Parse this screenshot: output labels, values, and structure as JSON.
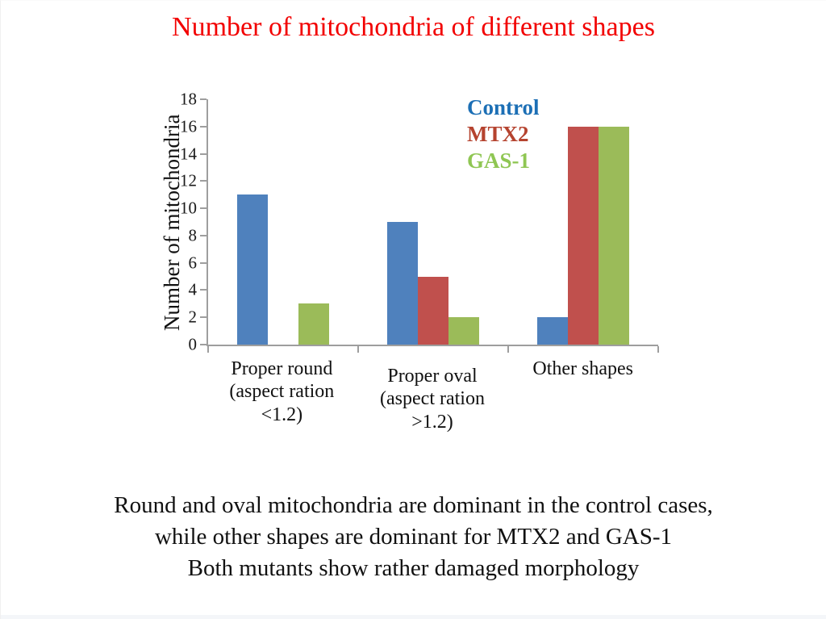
{
  "title": {
    "text": "Number of mitochondria of different shapes",
    "color": "#f20000"
  },
  "chart_data": {
    "type": "bar",
    "title": "Number of mitochondria of different shapes",
    "xlabel": "",
    "ylabel": "Number of mitochondria",
    "ylim": [
      0,
      18
    ],
    "ytick_step": 2,
    "grid": false,
    "legend_position": "top-right-inside",
    "axis_color": "#9e9e9e",
    "tick_label_color": "#1a1a1a",
    "categories": [
      "Proper round\n(aspect ration\n<1.2)",
      "Proper oval\n(aspect ration\n>1.2)",
      "Other shapes"
    ],
    "series": [
      {
        "name": "Control",
        "color": "#4F81BD",
        "label_color": "#1C6FB5",
        "values": [
          11,
          9,
          2
        ]
      },
      {
        "name": "MTX2",
        "color": "#C0504D",
        "label_color": "#B5432F",
        "values": [
          0,
          5,
          16
        ]
      },
      {
        "name": "GAS-1",
        "color": "#9BBB59",
        "label_color": "#8FC653",
        "values": [
          3,
          2,
          16
        ]
      }
    ]
  },
  "caption": {
    "text": "Round and oval mitochondria are dominant in the control cases,\nwhile other shapes are dominant for MTX2 and GAS-1\nBoth mutants show rather damaged morphology"
  }
}
